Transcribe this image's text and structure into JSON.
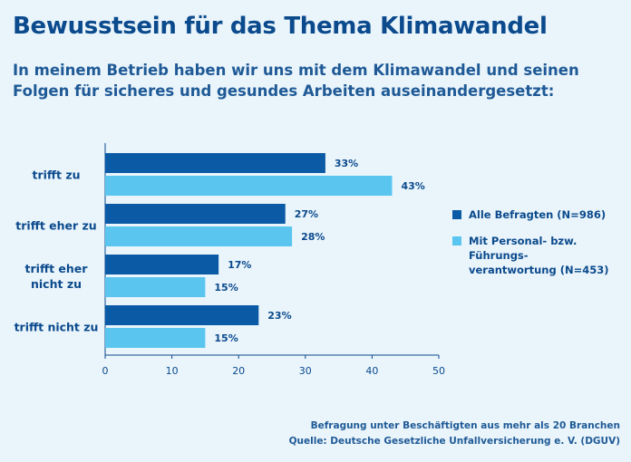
{
  "colors": {
    "background": "#e9f4fb",
    "series_dark": "#0b5aa6",
    "series_light": "#5ac6f0",
    "text": "#0b4a8c"
  },
  "chart_data": {
    "type": "bar",
    "orientation": "horizontal",
    "title": "Bewusstsein für das Thema Klimawandel",
    "subtitle": "In meinem Betrieb haben wir uns mit dem Klimawandel und seinen Folgen für sicheres und gesundes Arbeiten auseinandergesetzt:",
    "categories": [
      [
        "trifft zu"
      ],
      [
        "trifft eher zu"
      ],
      [
        "trifft eher",
        "nicht zu"
      ],
      [
        "trifft nicht zu"
      ]
    ],
    "series": [
      {
        "name": "Alle Befragten (N=986)",
        "values": [
          33,
          27,
          17,
          23
        ],
        "labels": [
          "33%",
          "27%",
          "17%",
          "23%"
        ]
      },
      {
        "name": "Mit Personal- bzw. Führungs-verantwortung (N=453)",
        "legend_lines": [
          "Mit Personal- bzw. Führungs-",
          "verantwortung (N=453)"
        ],
        "values": [
          43,
          28,
          15,
          15
        ],
        "labels": [
          "43%",
          "28%",
          "15%",
          "15%"
        ]
      }
    ],
    "xlim": [
      0,
      50
    ],
    "xticks": [
      0,
      10,
      20,
      30,
      40,
      50
    ],
    "legend_position": "right"
  },
  "footer": {
    "line1": "Befragung unter Beschäftigten aus mehr als 20 Branchen",
    "line2": "Quelle: Deutsche Gesetzliche Unfallversicherung e. V. (DGUV)"
  }
}
